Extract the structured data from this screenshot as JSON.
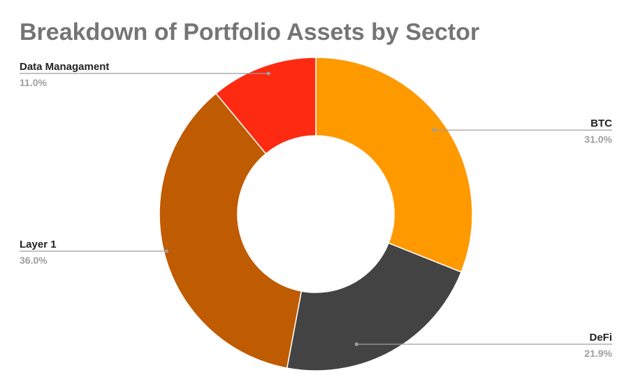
{
  "chart_data": {
    "type": "pie",
    "donut": true,
    "title": "Breakdown of Portfolio Assets by Sector",
    "slices": [
      {
        "label": "BTC",
        "value": 31.0,
        "percent_label": "31.0%",
        "color": "#ff9900"
      },
      {
        "label": "DeFi",
        "value": 21.9,
        "percent_label": "21.9%",
        "color": "#434343"
      },
      {
        "label": "Layer 1",
        "value": 36.0,
        "percent_label": "36.0%",
        "color": "#bf5b00"
      },
      {
        "label": "Data Managament",
        "value": 11.0,
        "percent_label": "11.0%",
        "color": "#ff2a12"
      }
    ],
    "start_angle": "12 o'clock",
    "direction": "clockwise"
  }
}
